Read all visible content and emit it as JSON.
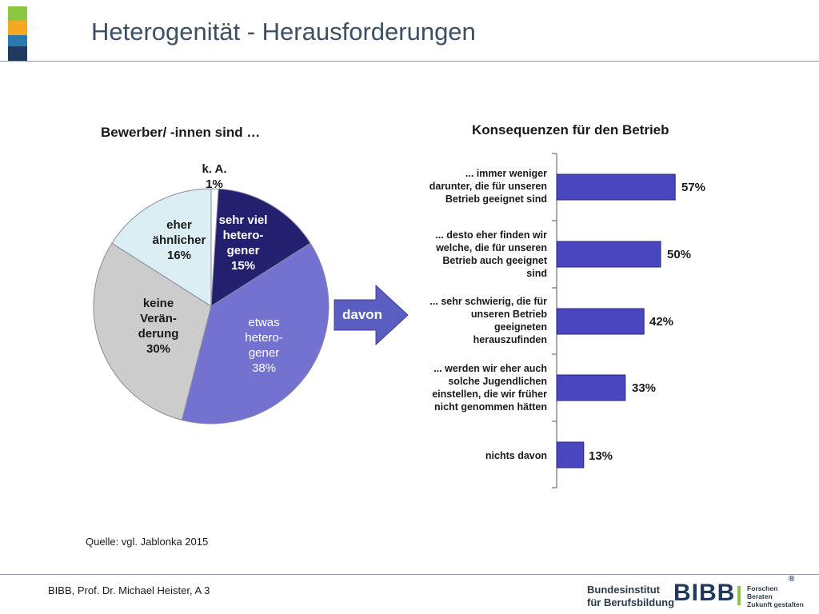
{
  "slide": {
    "title": "Heterogenität - Herausforderungen",
    "accent_colors": [
      "#8dc63f",
      "#f7a823",
      "#2a7ab0",
      "#1f3a5f"
    ]
  },
  "arrow": {
    "label": "davon",
    "color": "#5a5ec0"
  },
  "chart_data": [
    {
      "type": "pie",
      "title": "Bewerber/ -innen sind …",
      "slices": [
        {
          "label_lines": [
            "k. A.",
            "1%"
          ],
          "name": "k. A.",
          "value": 1,
          "color": "#ffffff"
        },
        {
          "label_lines": [
            "sehr viel",
            "hetero-",
            "gener",
            "15%"
          ],
          "name": "sehr viel heterogener",
          "value": 15,
          "color": "#232070"
        },
        {
          "label_lines": [
            "etwas",
            "hetero-",
            "gener",
            "38%"
          ],
          "name": "etwas heterogener",
          "value": 38,
          "color": "#7372d1"
        },
        {
          "label_lines": [
            "keine",
            "Verän-",
            "derung",
            "30%"
          ],
          "name": "keine Veränderung",
          "value": 30,
          "color": "#cccccc"
        },
        {
          "label_lines": [
            "eher",
            "ähnlicher",
            "16%"
          ],
          "name": "eher ähnlicher",
          "value": 16,
          "color": "#dbeef3"
        }
      ]
    },
    {
      "type": "bar",
      "orientation": "horizontal",
      "title": "Konsequenzen für den Betrieb",
      "categories": [
        [
          "... immer weniger",
          "darunter, die für unseren",
          "Betrieb geeignet sind"
        ],
        [
          "... desto eher finden wir",
          "welche, die für unseren",
          "Betrieb auch geeignet",
          "sind"
        ],
        [
          "... sehr schwierig, die für",
          "unseren Betrieb",
          "geeigneten",
          "herauszufinden"
        ],
        [
          "... werden wir eher auch",
          "solche Jugendlichen",
          "einstellen, die wir früher",
          "nicht genommen hätten"
        ],
        [
          "nichts davon"
        ]
      ],
      "values": [
        57,
        50,
        42,
        33,
        13
      ],
      "value_labels": [
        "57%",
        "50%",
        "42%",
        "33%",
        "13%"
      ],
      "bar_color": "#4a46c0",
      "xlim": [
        0,
        100
      ]
    }
  ],
  "source": "Quelle: vgl. Jablonka 2015",
  "footer": {
    "text": "BIBB, Prof. Dr. Michael Heister, A 3",
    "logo_line1": "Bundesinstitut",
    "logo_line2": "für Berufsbildung",
    "logo_mark": "BIBB",
    "tagline": [
      "Forschen",
      "Beraten",
      "Zukunft gestalten"
    ],
    "registered": "®"
  }
}
